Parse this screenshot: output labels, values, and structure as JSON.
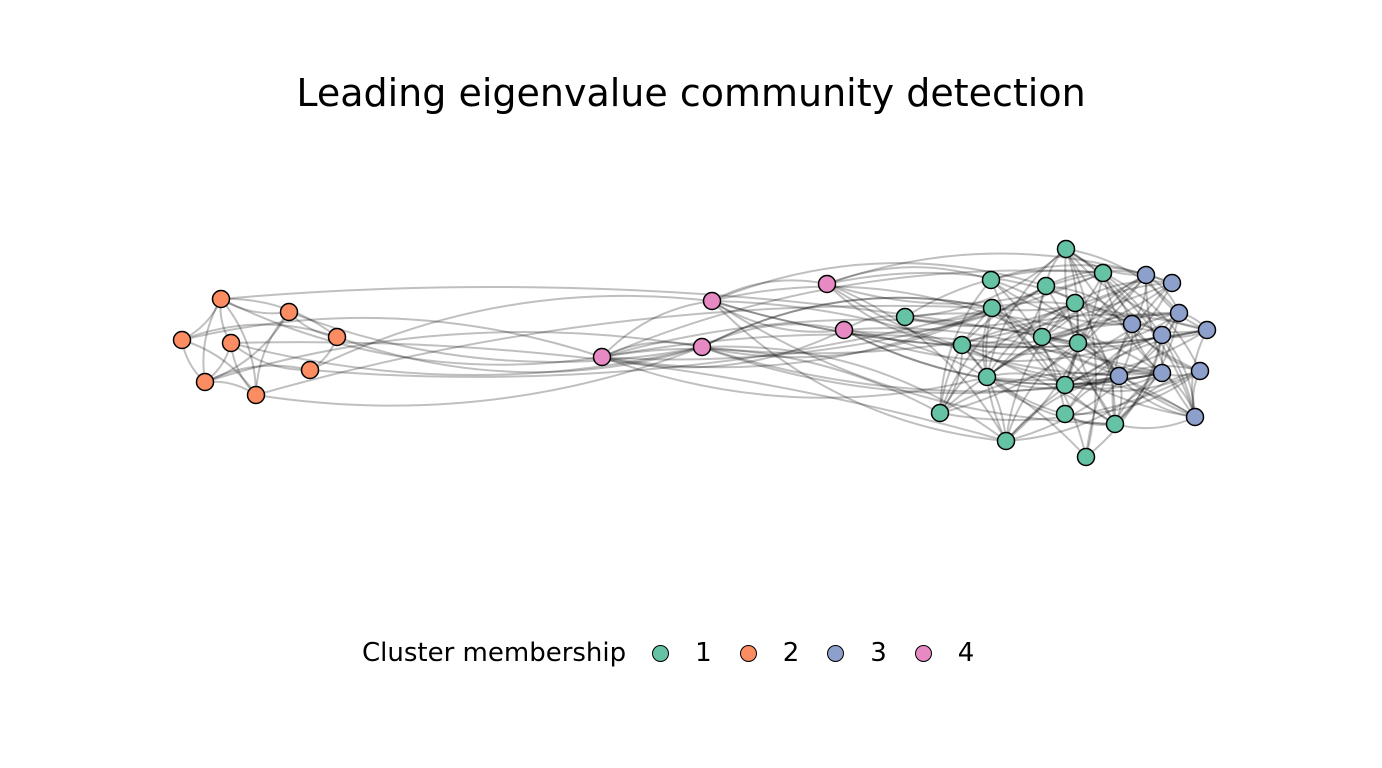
{
  "title": "Leading eigenvalue community detection",
  "legend": {
    "title": "Cluster membership",
    "items": [
      {
        "label": "1",
        "color": "#66c2a5"
      },
      {
        "label": "2",
        "color": "#fc8d62"
      },
      {
        "label": "3",
        "color": "#8da0cb"
      },
      {
        "label": "4",
        "color": "#e78ac3"
      }
    ]
  },
  "edge_color": "#000000"
}
